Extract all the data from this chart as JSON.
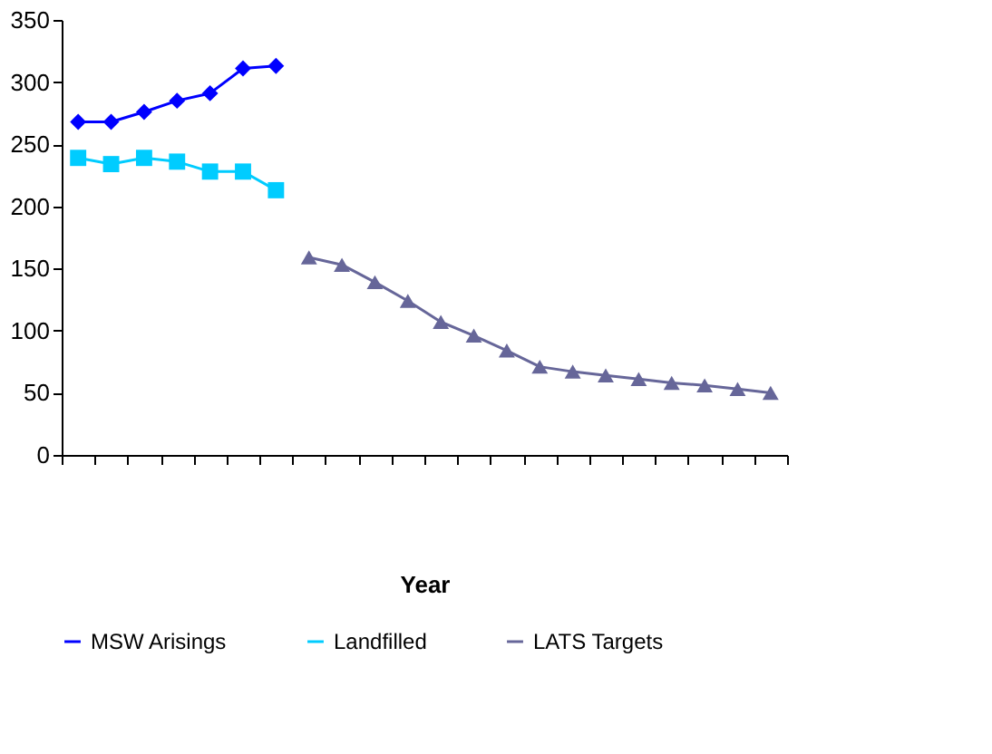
{
  "chart_data": {
    "type": "line",
    "xlabel": "Year",
    "categories": [
      null,
      null,
      null,
      null,
      null,
      null,
      null,
      null,
      null,
      null,
      null,
      null,
      null,
      null,
      null,
      null,
      null,
      null,
      null,
      null,
      null,
      null
    ],
    "series": [
      {
        "name": "MSW Arisings",
        "color": "#0000ff",
        "marker": "diamond",
        "values": [
          268,
          268,
          276,
          285,
          291,
          311,
          313,
          null,
          null,
          null,
          null,
          null,
          null,
          null,
          null,
          null,
          null,
          null,
          null,
          null,
          null,
          null
        ]
      },
      {
        "name": "Landfilled",
        "color": "#00ccff",
        "marker": "square",
        "values": [
          239,
          234,
          239,
          236,
          228,
          228,
          213,
          null,
          null,
          null,
          null,
          null,
          null,
          null,
          null,
          null,
          null,
          null,
          null,
          null,
          null,
          null
        ]
      },
      {
        "name": "LATS Targets",
        "color": "#666699",
        "marker": "triangle",
        "values": [
          null,
          null,
          null,
          null,
          null,
          null,
          null,
          159,
          153,
          139,
          124,
          107,
          96,
          84,
          71,
          67,
          64,
          61,
          58,
          56,
          53,
          50
        ]
      }
    ],
    "ylim": [
      0,
      350
    ],
    "yticks": [
      0,
      50,
      100,
      150,
      200,
      250,
      300,
      350
    ],
    "tick_labels": "y",
    "grid": false,
    "legend": "bottom",
    "line_style": "solid"
  }
}
